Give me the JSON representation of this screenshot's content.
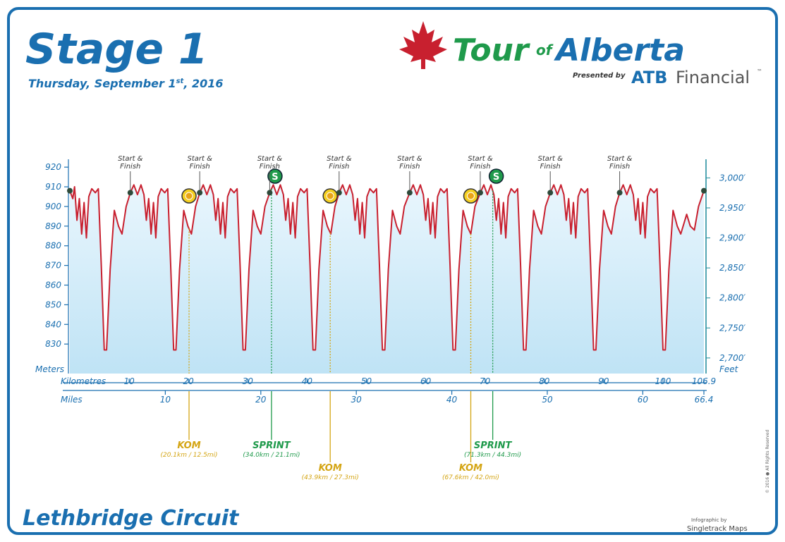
{
  "header": {
    "stage": "Stage 1",
    "date": [
      "Thursday, September 1",
      "st",
      ", 2016"
    ],
    "logo": [
      "Tour",
      "of",
      "Alberta"
    ],
    "presented_by": "Presented by",
    "sponsor": [
      "ATB",
      "Financial",
      "™"
    ]
  },
  "chart_data": {
    "type": "area",
    "color": "#c8202f",
    "ylabel": "Meters",
    "y2label": "Feet",
    "xlabel": "Kilometres",
    "x2label": "Miles",
    "ylim": [
      815,
      924
    ],
    "yticks": [
      830,
      840,
      850,
      860,
      870,
      880,
      890,
      900,
      910,
      920
    ],
    "y2lim": [
      2674,
      3031
    ],
    "y2ticks": [
      {
        "value": 2700,
        "label": "2,700′"
      },
      {
        "value": 2750,
        "label": "2,750′"
      },
      {
        "value": 2800,
        "label": "2,800′"
      },
      {
        "value": 2850,
        "label": "2,850′"
      },
      {
        "value": 2900,
        "label": "2,900′"
      },
      {
        "value": 2950,
        "label": "2,950′"
      },
      {
        "value": 3000,
        "label": "3,000′"
      }
    ],
    "xlim": [
      0,
      106.9
    ],
    "xticks": [
      10,
      20,
      30,
      40,
      50,
      60,
      70,
      80,
      90,
      100,
      106.9
    ],
    "x2lim": [
      0,
      66.4
    ],
    "x2ticks": [
      10,
      20,
      30,
      40,
      50,
      60,
      66.4
    ],
    "x": [
      0,
      0.5,
      0.8,
      1.2,
      1.6,
      2.0,
      2.4,
      2.8,
      3.2,
      3.7,
      4.3,
      4.8,
      5.3,
      5.8,
      6.2,
      6.8,
      7.5,
      8.2,
      8.8,
      9.5,
      10.2,
      10.8,
      11.4,
      12.0,
      12.5,
      12.9,
      13.3,
      13.7,
      14.1,
      14.5,
      14.9,
      15.4,
      16.0,
      16.5,
      17.0,
      17.5,
      17.9,
      18.5,
      19.2,
      19.9,
      20.5,
      21.2,
      21.9,
      22.5,
      23.1,
      23.7,
      24.2,
      24.6,
      25.0,
      25.4,
      25.8,
      26.2,
      26.6,
      27.1,
      27.7,
      28.2,
      28.7,
      29.2,
      29.6,
      30.2,
      30.9,
      31.6,
      32.2,
      32.9,
      33.7,
      34.3,
      34.9,
      35.5,
      36.0,
      36.4,
      36.8,
      37.2,
      37.6,
      38.0,
      38.4,
      38.9,
      39.5,
      40.0,
      40.5,
      41.0,
      41.4,
      42.0,
      42.7,
      43.4,
      44.0,
      44.7,
      45.4,
      46.0,
      46.6,
      47.2,
      47.7,
      48.1,
      48.5,
      48.9,
      49.3,
      49.7,
      50.1,
      50.6,
      51.2,
      51.7,
      52.2,
      52.7,
      53.1,
      53.7,
      54.4,
      55.1,
      55.7,
      56.4,
      57.3,
      57.9,
      58.5,
      59.1,
      59.6,
      60.0,
      60.4,
      60.8,
      61.2,
      61.6,
      62.0,
      62.5,
      63.1,
      63.6,
      64.1,
      64.6,
      65.0,
      65.6,
      66.3,
      67.0,
      67.6,
      68.3,
      69.2,
      69.8,
      70.4,
      71.0,
      71.5,
      71.9,
      72.3,
      72.7,
      73.1,
      73.5,
      73.9,
      74.4,
      75.0,
      75.5,
      76.0,
      76.5,
      76.9,
      77.5,
      78.2,
      78.9,
      79.5,
      80.2,
      81.0,
      81.6,
      82.2,
      82.8,
      83.3,
      83.7,
      84.1,
      84.5,
      84.9,
      85.3,
      85.7,
      86.2,
      86.8,
      87.3,
      87.8,
      88.3,
      88.7,
      89.3,
      90.0,
      90.7,
      91.3,
      92.0,
      92.7,
      93.3,
      93.9,
      94.5,
      95.0,
      95.4,
      95.8,
      96.2,
      96.6,
      97.0,
      97.4,
      97.9,
      98.5,
      99.0,
      99.5,
      100.0,
      100.4,
      101.0,
      101.7,
      102.4,
      103.0,
      104.0,
      104.6,
      105.3,
      106.0,
      106.9
    ],
    "values": [
      908,
      904,
      910,
      893,
      904,
      886,
      902,
      884,
      905,
      909,
      907,
      909,
      870,
      827,
      827,
      868,
      898,
      890,
      886,
      900,
      907,
      911,
      906,
      911,
      906,
      893,
      904,
      886,
      902,
      884,
      905,
      909,
      907,
      909,
      870,
      827,
      827,
      868,
      898,
      890,
      886,
      900,
      907,
      911,
      906,
      911,
      906,
      893,
      904,
      886,
      902,
      884,
      905,
      909,
      907,
      909,
      870,
      827,
      827,
      868,
      898,
      890,
      886,
      900,
      907,
      911,
      906,
      911,
      906,
      893,
      904,
      886,
      902,
      884,
      905,
      909,
      907,
      909,
      870,
      827,
      827,
      868,
      898,
      890,
      886,
      900,
      907,
      911,
      906,
      911,
      906,
      893,
      904,
      886,
      902,
      884,
      905,
      909,
      907,
      909,
      870,
      827,
      827,
      868,
      898,
      890,
      886,
      900,
      907,
      911,
      906,
      911,
      906,
      893,
      904,
      886,
      902,
      884,
      905,
      909,
      907,
      909,
      870,
      827,
      827,
      868,
      898,
      890,
      886,
      900,
      907,
      911,
      906,
      911,
      906,
      893,
      904,
      886,
      902,
      884,
      905,
      909,
      907,
      909,
      870,
      827,
      827,
      868,
      898,
      890,
      886,
      900,
      907,
      911,
      906,
      911,
      906,
      893,
      904,
      886,
      902,
      884,
      905,
      909,
      907,
      909,
      870,
      827,
      827,
      868,
      898,
      890,
      886,
      900,
      907,
      911,
      906,
      911,
      906,
      893,
      904,
      886,
      902,
      884,
      905,
      909,
      907,
      909,
      870,
      827,
      827,
      868,
      898,
      890,
      886,
      896,
      890,
      888,
      900,
      908
    ],
    "start_finish": {
      "label": [
        "Start &",
        "Finish"
      ],
      "x": [
        10.2,
        21.9,
        33.7,
        45.4,
        57.3,
        69.2,
        81.0,
        92.7
      ]
    },
    "endpoints": [
      0,
      106.9
    ],
    "annotations": [
      {
        "type": "KOM",
        "label": "KOM",
        "detail": "(20.1km / 12.5mi)",
        "x": 20.1,
        "color": "#d4a514"
      },
      {
        "type": "SPRINT",
        "label": "SPRINT",
        "detail": "(34.0km / 21.1mi)",
        "x": 34.0,
        "color": "#1f9a4b"
      },
      {
        "type": "KOM",
        "label": "KOM",
        "detail": "(43.9km / 27.3mi)",
        "x": 43.9,
        "color": "#d4a514"
      },
      {
        "type": "KOM",
        "label": "KOM",
        "detail": "(67.6km / 42.0mi)",
        "x": 67.6,
        "color": "#d4a514"
      },
      {
        "type": "SPRINT",
        "label": "SPRINT",
        "detail": "(71.3km / 44.3mi)",
        "x": 71.3,
        "color": "#1f9a4b"
      }
    ],
    "sprint_icon": "S"
  },
  "footer": {
    "title": "Lethbridge Circuit",
    "credit": [
      "Infographic by",
      "Singletrack Maps"
    ],
    "copyright": "© 2016 ● All Rights Reserved"
  }
}
